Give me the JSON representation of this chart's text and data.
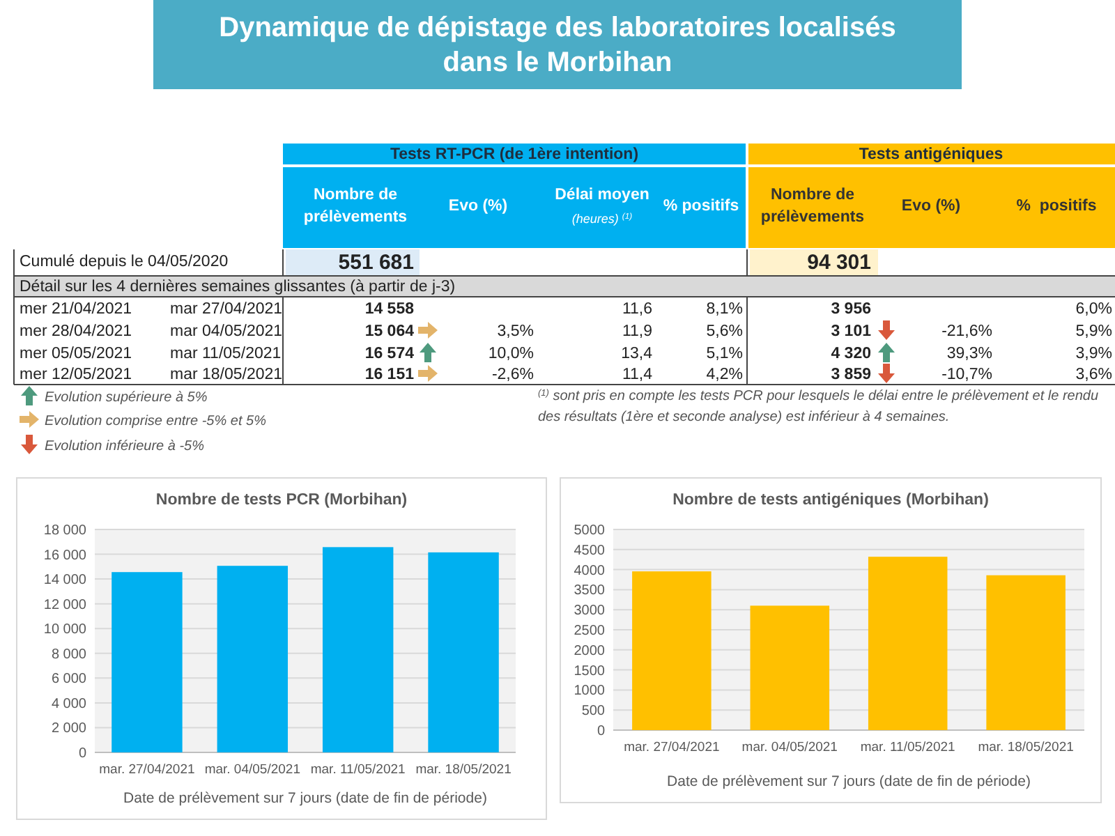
{
  "chart_data": [
    {
      "type": "other",
      "title": "Dynamique de dépistage des laboratoires localisés dans le Morbihan",
      "annotations": [
        "Tests RT-PCR (de 1ère intention)",
        "Tests antigéniques",
        "Nombre de prélèvements",
        "Evo (%)",
        "Délai moyen",
        "(heures) $^{(1)}$",
        "% positifs",
        "Nombre de prélèvements",
        "Evo (%)",
        "%  positifs",
        "Cumulé depuis le 04/05/2020",
        "551 681",
        "94 301",
        "Détail sur les 4 dernières semaines glissantes (à partir de j-3)",
        "mer 21/04/2021",
        "mar 27/04/2021",
        "14 558",
        "11,6",
        "8,1%",
        "3 956",
        "6,0%",
        "mer 28/04/2021",
        "mar 04/05/2021",
        "15 064",
        "3,5%",
        "11,9",
        "5,6%",
        "3 101",
        "-21,6%",
        "5,9%",
        "mer 05/05/2021",
        "mar 11/05/2021",
        "16 574",
        "10,0%",
        "13,4",
        "5,1%",
        "4 320",
        "39,3%",
        "3,9%",
        "mer 12/05/2021",
        "mar 18/05/2021",
        "16 151",
        "-2,6%",
        "11,4",
        "4,2%",
        "3 859",
        "-10,7%",
        "3,6%",
        "Evolution supérieure à 5%",
        "Evolution comprise entre -5% et 5%",
        "Evolution inférieure à -5%",
        "$^{(1)}$ sont pris en compte les tests PCR pour lesquels le délai entre le prélèvement et le rendu",
        "des résultats (1ère et seconde analyse) est inférieur à 4 semaines."
      ]
    },
    {
      "type": "bar",
      "title": "Nombre de tests PCR (Morbihan)",
      "xlabel": "Date de prélèvement sur 7 jours (date de fin de période)",
      "categories": [
        "mar. 27/04/2021",
        "mar. 04/05/2021",
        "mar. 11/05/2021",
        "mar. 18/05/2021"
      ],
      "values": [
        14558,
        15064,
        16574,
        16151
      ],
      "color": "#00b0f0",
      "ylim": [
        0,
        18000
      ],
      "yticks": [
        0,
        {
          "value": 2000,
          "label": "2 000"
        },
        {
          "value": 4000,
          "label": "4 000"
        },
        {
          "value": 6000,
          "label": "6 000"
        },
        {
          "value": 8000,
          "label": "8 000"
        },
        {
          "value": 10000,
          "label": "10 000"
        },
        {
          "value": 12000,
          "label": "12 000"
        },
        {
          "value": 14000,
          "label": "14 000"
        },
        {
          "value": 16000,
          "label": "16 000"
        },
        {
          "value": 18000,
          "label": "18 000"
        }
      ],
      "grid": "y"
    },
    {
      "type": "bar",
      "title": "Nombre de tests antigéniques (Morbihan)",
      "xlabel": "Date de prélèvement sur 7 jours (date de fin de période)",
      "categories": [
        "mar. 27/04/2021",
        "mar. 04/05/2021",
        "mar. 11/05/2021",
        "mar. 18/05/2021"
      ],
      "values": [
        3956,
        3101,
        4320,
        3859
      ],
      "color": "#ffc000",
      "ylim": [
        0,
        5000
      ],
      "yticks": [
        0,
        500,
        1000,
        1500,
        2000,
        2500,
        3000,
        3500,
        4000,
        4500,
        5000
      ],
      "grid": "y"
    }
  ]
}
